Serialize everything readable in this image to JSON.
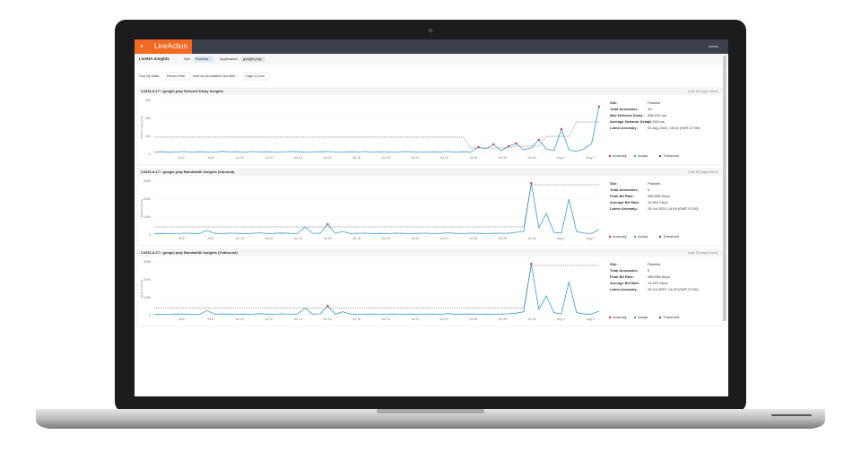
{
  "nav": {
    "logo": "LiveAction",
    "user": "admin"
  },
  "toolbar": {
    "title": "LiveNA Insights",
    "site_label": "Site:",
    "site": "Paluhits",
    "app_label": "Application:",
    "app": "google-play"
  },
  "sort": {
    "date_label": "Sort by Date:",
    "date": "Recent first",
    "anom_label": "Sort by Anomalies Number:",
    "anom": "High to Low"
  },
  "x_labels": [
    "Jul 6",
    "Jul 8",
    "Jul 10",
    "Jul 12",
    "Jul 14",
    "Jul 16",
    "Jul 18",
    "Jul 20",
    "Jul 22",
    "Jul 24",
    "Jul 26",
    "Jul 28",
    "Jul 30",
    "Aug 1",
    "Aug 3"
  ],
  "legend": [
    "Anomaly",
    "Actual",
    "Threshold"
  ],
  "colors": {
    "actual": "#3a9bd5",
    "anomaly": "#e53935",
    "threshold": "#555555"
  },
  "panels": [
    {
      "title": "C4331-8-17 / google-play Network Delay Insights",
      "trend": "Last 30 days trend",
      "y_title": "Network Delay (ms)",
      "ylim": [
        0,
        300
      ],
      "yticks": [
        0,
        100,
        200,
        300
      ],
      "values": [
        12,
        14,
        11,
        13,
        15,
        12,
        14,
        13,
        12,
        16,
        13,
        14,
        12,
        15,
        13,
        14,
        12,
        13,
        15,
        14,
        12,
        13,
        14,
        15,
        13,
        12,
        14,
        13,
        15,
        12,
        14,
        13,
        12,
        15,
        14,
        13,
        12,
        14,
        13,
        15,
        12,
        14,
        13,
        40,
        30,
        55,
        20,
        45,
        60,
        25,
        35,
        80,
        30,
        20,
        140,
        25,
        15,
        30,
        60,
        266
      ],
      "threshold": [
        95,
        95,
        95,
        95,
        95,
        95,
        95,
        95,
        95,
        95,
        95,
        95,
        95,
        95,
        95,
        95,
        95,
        95,
        95,
        95,
        95,
        95,
        95,
        95,
        95,
        95,
        95,
        95,
        95,
        95,
        95,
        95,
        95,
        95,
        95,
        95,
        95,
        95,
        95,
        95,
        95,
        95,
        35,
        35,
        35,
        35,
        35,
        35,
        45,
        45,
        45,
        45,
        100,
        100,
        100,
        100,
        180,
        180,
        180,
        180
      ],
      "info": [
        {
          "label": "Site:",
          "value": "Paluhits"
        },
        {
          "label": "Total Anomalies:",
          "value": "10"
        },
        {
          "label": "Max Network Delay:",
          "value": "266.222 ms"
        },
        {
          "label": "Average Network Delay:",
          "value": "28.315 ms"
        },
        {
          "label": "Latest Anomaly:",
          "value": "03 Aug 2020, 15:00 (GMT-07:00)"
        }
      ]
    },
    {
      "title": "C4331-8-17 / google-play Bandwidth Insights (Inbound)",
      "trend": "Last 30 days trend",
      "y_title": "Bit Rate (Kbps)",
      "ylim": [
        0,
        300
      ],
      "yticks": [
        0,
        {
          "value": 100,
          "label": "100K"
        },
        {
          "value": 200,
          "label": "200K"
        },
        {
          "value": 300,
          "label": "300K"
        }
      ],
      "values": [
        8,
        9,
        7,
        8,
        10,
        9,
        8,
        25,
        9,
        8,
        10,
        9,
        8,
        9,
        12,
        8,
        9,
        11,
        9,
        8,
        45,
        10,
        9,
        60,
        9,
        20,
        8,
        9,
        10,
        8,
        9,
        8,
        10,
        9,
        8,
        9,
        10,
        8,
        9,
        12,
        9,
        8,
        10,
        9,
        8,
        9,
        10,
        9,
        15,
        20,
        289,
        40,
        120,
        15,
        10,
        200,
        20,
        10,
        8,
        30
      ],
      "threshold": [
        45,
        45,
        45,
        45,
        45,
        45,
        45,
        45,
        45,
        45,
        45,
        45,
        45,
        45,
        45,
        45,
        45,
        45,
        45,
        45,
        45,
        45,
        45,
        45,
        45,
        45,
        45,
        45,
        45,
        45,
        45,
        45,
        45,
        45,
        45,
        45,
        45,
        45,
        45,
        45,
        45,
        45,
        45,
        45,
        45,
        45,
        45,
        45,
        45,
        45,
        280,
        280,
        280,
        280,
        280,
        280,
        280,
        280,
        280,
        280
      ],
      "info": [
        {
          "label": "Site:",
          "value": "Paluhits"
        },
        {
          "label": "Total Anomalies:",
          "value": "5"
        },
        {
          "label": "Peak Bit Rate:",
          "value": "288.958 Kbps"
        },
        {
          "label": "Average Bit Rate:",
          "value": "13.902 Kbps"
        },
        {
          "label": "Latest Anomaly:",
          "value": "29 Jul 2020, 14:00 (GMT-07:00)"
        }
      ]
    },
    {
      "title": "C4331-8-17 / google-play Bandwidth Insights (Outbound)",
      "trend": "Last 30 days trend",
      "y_title": "Bit Rate (Kbps)",
      "ylim": [
        0,
        300
      ],
      "yticks": [
        0,
        {
          "value": 100,
          "label": "100K"
        },
        {
          "value": 200,
          "label": "200K"
        },
        {
          "value": 300,
          "label": "300K"
        }
      ],
      "values": [
        7,
        8,
        8,
        9,
        9,
        8,
        7,
        28,
        8,
        9,
        9,
        8,
        9,
        8,
        11,
        9,
        8,
        10,
        8,
        9,
        42,
        9,
        10,
        55,
        8,
        22,
        9,
        8,
        9,
        9,
        8,
        9,
        9,
        8,
        9,
        8,
        9,
        9,
        8,
        11,
        8,
        9,
        9,
        8,
        9,
        8,
        9,
        10,
        14,
        22,
        289,
        35,
        110,
        18,
        9,
        190,
        18,
        9,
        9,
        25
      ],
      "threshold": [
        42,
        42,
        42,
        42,
        42,
        42,
        42,
        42,
        42,
        42,
        42,
        42,
        42,
        42,
        42,
        42,
        42,
        42,
        42,
        42,
        42,
        42,
        42,
        42,
        42,
        42,
        42,
        42,
        42,
        42,
        42,
        42,
        42,
        42,
        42,
        42,
        42,
        42,
        42,
        42,
        42,
        42,
        42,
        42,
        42,
        42,
        42,
        42,
        42,
        42,
        280,
        280,
        280,
        280,
        280,
        280,
        280,
        280,
        280,
        280
      ],
      "info": [
        {
          "label": "Site:",
          "value": "Paluhits"
        },
        {
          "label": "Total Anomalies:",
          "value": "5"
        },
        {
          "label": "Peak Bit Rate:",
          "value": "288.958 Kbps"
        },
        {
          "label": "Average Bit Rate:",
          "value": "13.931 Kbps"
        },
        {
          "label": "Latest Anomaly:",
          "value": "29 Jul 2020, 14:00 (GMT-07:00)"
        }
      ]
    }
  ]
}
